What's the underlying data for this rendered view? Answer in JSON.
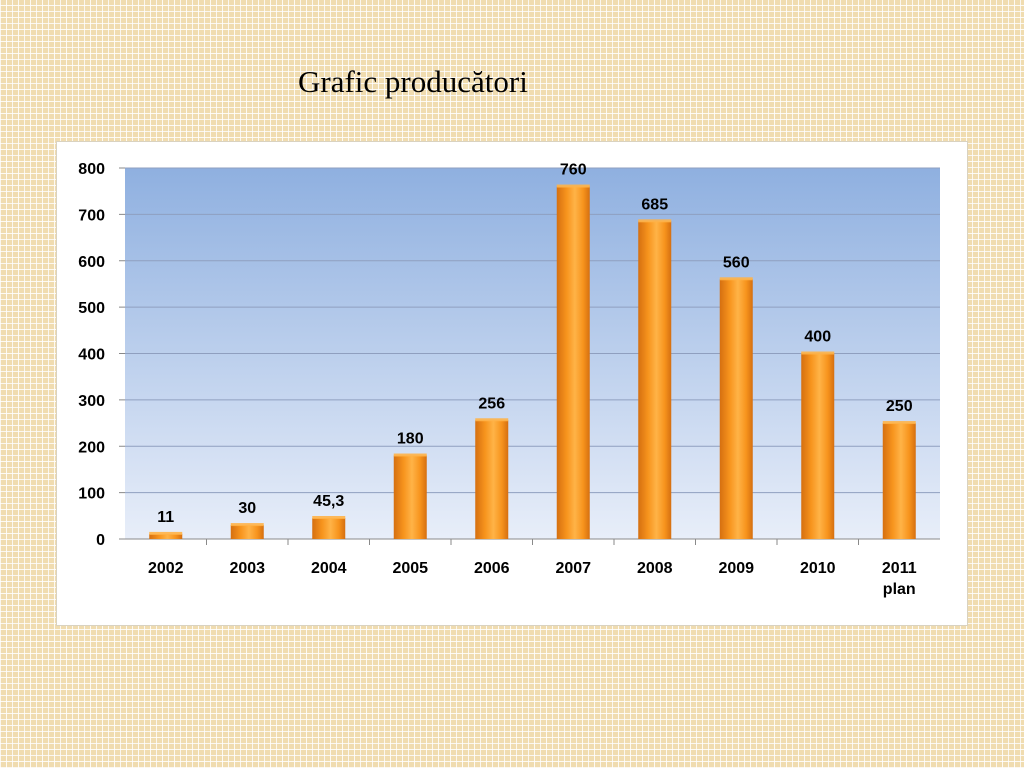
{
  "slide": {
    "title": "Grafic producători"
  },
  "chart_data": {
    "type": "bar",
    "title": "",
    "xlabel": "",
    "ylabel": "",
    "categories": [
      "2002",
      "2003",
      "2004",
      "2005",
      "2006",
      "2007",
      "2008",
      "2009",
      "2010",
      "2011 plan"
    ],
    "values": [
      11,
      30,
      45.3,
      180,
      256,
      760,
      685,
      560,
      400,
      250
    ],
    "value_labels": [
      "11",
      "30",
      "45,3",
      "180",
      "256",
      "760",
      "685",
      "560",
      "400",
      "250"
    ],
    "ylim": [
      0,
      800
    ],
    "yticks": [
      0,
      100,
      200,
      300,
      400,
      500,
      600,
      700,
      800
    ],
    "grid": true,
    "legend": "none",
    "colors": {
      "bar_light": "#ffb347",
      "bar_mid": "#f7941d",
      "bar_dark": "#d56f10",
      "plot_top": "#8fb0e0",
      "plot_bottom": "#e8eef9",
      "gridline": "#8f9fbf"
    }
  }
}
